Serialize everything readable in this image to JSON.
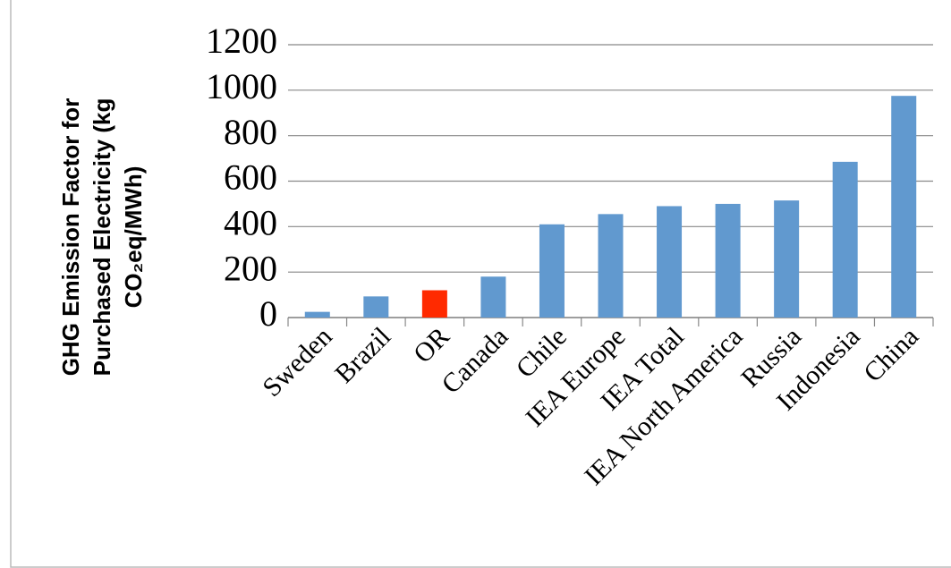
{
  "chart_data": {
    "type": "bar",
    "y_label": [
      "GHG Emission Factor for",
      "Purchased Electricity (kg",
      "CO₂eq/MWh)"
    ],
    "categories": [
      "Sweden",
      "Brazil",
      "OR",
      "Canada",
      "Chile",
      "IEA Europe",
      "IEA Total",
      "IEA North America",
      "Russia",
      "Indonesia",
      "China"
    ],
    "values": [
      25,
      93,
      120,
      180,
      410,
      455,
      490,
      500,
      515,
      685,
      975
    ],
    "colors": [
      "#6199cf",
      "#6199cf",
      "#ff2a00",
      "#6199cf",
      "#6199cf",
      "#6199cf",
      "#6199cf",
      "#6199cf",
      "#6199cf",
      "#6199cf",
      "#6199cf"
    ],
    "ylim": [
      0,
      1200
    ],
    "yticks": [
      0,
      200,
      400,
      600,
      800,
      1000,
      1200
    ],
    "grid": true
  }
}
